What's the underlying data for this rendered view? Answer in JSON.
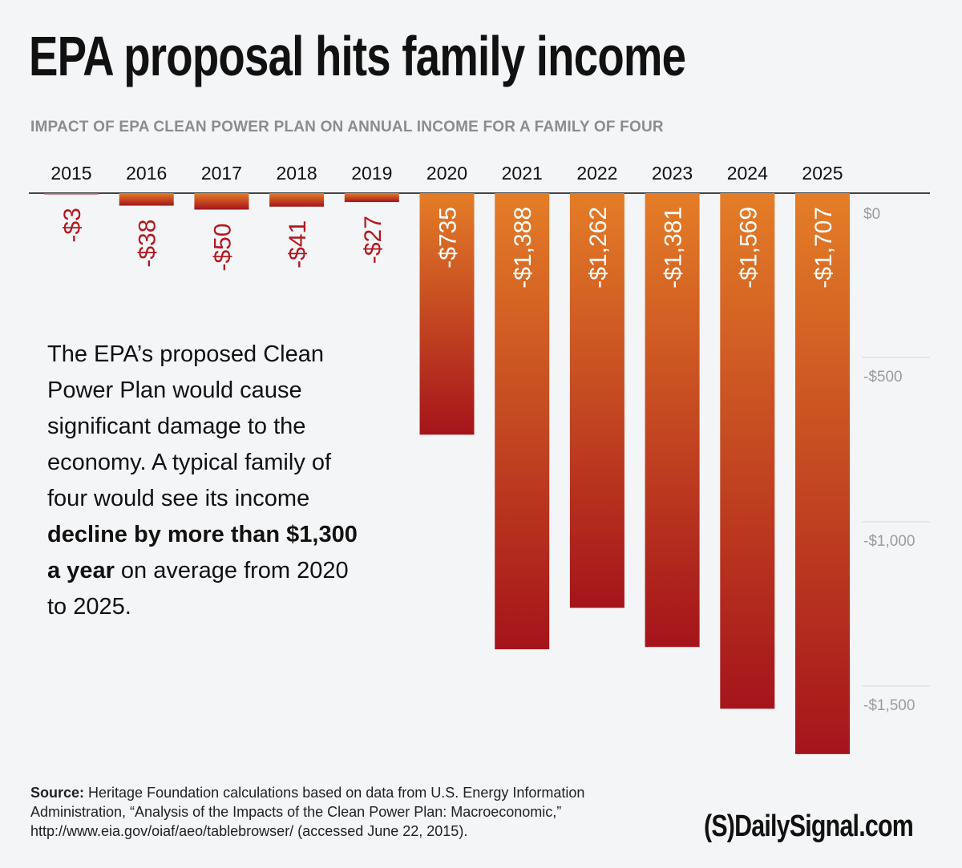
{
  "title": "EPA proposal hits family income",
  "subtitle": "IMPACT OF EPA CLEAN POWER PLAN ON ANNUAL INCOME FOR A FAMILY OF FOUR",
  "description": {
    "before": "The EPA’s proposed Clean Power Plan would cause significant damage to the economy. A typical family of four would see its income ",
    "bold": "decline by more than $1,300 a year",
    "after": " on average from 2020 to 2025."
  },
  "source": {
    "label": "Source:",
    "text": " Heritage Foundation calculations based on data from U.S. Energy Information Administration, “Analysis of the Impacts of the Clean Power Plan: Macroeconomic,” http://www.eia.gov/oiaf/aeo/tablebrowser/ (accessed June 22, 2015)."
  },
  "logo": "(S)DailySignal.com",
  "colors": {
    "bar_top": "#e47d27",
    "bar_bottom": "#a5141b",
    "label_red": "#b3161d",
    "axis_text": "#9a9ca0"
  },
  "chart_data": {
    "type": "bar",
    "categories": [
      "2015",
      "2016",
      "2017",
      "2018",
      "2019",
      "2020",
      "2021",
      "2022",
      "2023",
      "2024",
      "2025"
    ],
    "values": [
      -3,
      -38,
      -50,
      -41,
      -27,
      -735,
      -1388,
      -1262,
      -1381,
      -1569,
      -1707
    ],
    "data_labels": [
      "-$3",
      "-$38",
      "-$50",
      "-$41",
      "-$27",
      "-$735",
      "-$1,388",
      "-$1,262",
      "-$1,381",
      "-$1,569",
      "-$1,707"
    ],
    "ylim": [
      -1707,
      0
    ],
    "y_ticks": [
      0,
      -500,
      -1000,
      -1500
    ],
    "y_tick_labels": [
      "$0",
      "-$500",
      "-$1,000",
      "-$1,500"
    ],
    "x_axis_position": "top",
    "y_axis_position": "right",
    "grid": true
  }
}
